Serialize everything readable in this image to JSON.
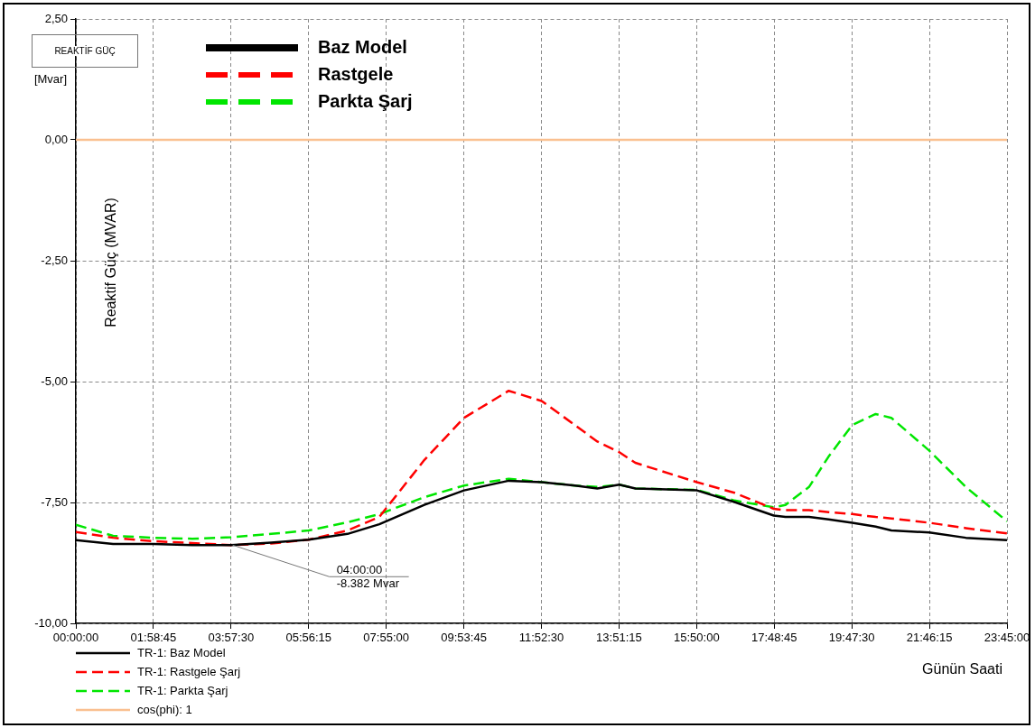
{
  "chart_data": {
    "type": "line",
    "title": "REAKTİF GÜÇ",
    "ylabel": "Reaktif Güç (MVAR)",
    "xlabel": "Günün Saati",
    "annotations": [
      "[Mvar]",
      "Baz Model",
      "Rastgele",
      "Parkta Şarj",
      {
        "text": "04:00:00\n-8.382 Mvar",
        "x": 4,
        "y": -8.382
      }
    ],
    "x": [
      0,
      0.95,
      1.98,
      2.97,
      3.96,
      4.98,
      5.94,
      6.93,
      7.74,
      8.89,
      9.9,
      11.04,
      11.88,
      12.73,
      13.3,
      13.86,
      14.27,
      15.84,
      16.8,
      17.8,
      18.1,
      18.7,
      19.2,
      19.8,
      20.4,
      20.8,
      21.77,
      22.7,
      23.75
    ],
    "series": [
      {
        "name": "TR-1: Baz Model",
        "color": "#000000",
        "line_style": "solid",
        "values": [
          -8.28,
          -8.36,
          -8.36,
          -8.38,
          -8.38,
          -8.33,
          -8.27,
          -8.15,
          -7.95,
          -7.55,
          -7.25,
          -7.05,
          -7.08,
          -7.15,
          -7.21,
          -7.13,
          -7.21,
          -7.25,
          -7.49,
          -7.77,
          -7.8,
          -7.8,
          -7.85,
          -7.92,
          -8.0,
          -8.08,
          -8.12,
          -8.23,
          -8.28
        ]
      },
      {
        "name": "TR-1: Rastgele Şarj",
        "color": "#ff0000",
        "line_style": "dashed",
        "values": [
          -8.11,
          -8.23,
          -8.3,
          -8.34,
          -8.38,
          -8.35,
          -8.27,
          -8.08,
          -7.8,
          -6.62,
          -5.75,
          -5.19,
          -5.4,
          -5.9,
          -6.24,
          -6.46,
          -6.68,
          -7.08,
          -7.3,
          -7.63,
          -7.66,
          -7.66,
          -7.7,
          -7.74,
          -7.8,
          -7.83,
          -7.92,
          -8.03,
          -8.14
        ]
      },
      {
        "name": "TR-1: Parkta Şarj",
        "color": "#00e600",
        "line_style": "dashed",
        "values": [
          -7.96,
          -8.19,
          -8.23,
          -8.25,
          -8.22,
          -8.15,
          -8.08,
          -7.91,
          -7.74,
          -7.39,
          -7.15,
          -7.01,
          -7.08,
          -7.15,
          -7.18,
          -7.13,
          -7.21,
          -7.24,
          -7.46,
          -7.6,
          -7.55,
          -7.18,
          -6.55,
          -5.9,
          -5.67,
          -5.75,
          -6.43,
          -7.18,
          -7.89
        ]
      },
      {
        "name": "cos(phi): 1",
        "color": "#fac090",
        "line_style": "solid",
        "x": [
          0,
          23.75
        ],
        "values": [
          0,
          0
        ]
      }
    ],
    "xlim": [
      0,
      23.75
    ],
    "xticks": [
      {
        "value": 0,
        "label": "00:00:00"
      },
      {
        "value": 1.979167,
        "label": "01:58:45"
      },
      {
        "value": 3.958333,
        "label": "03:57:30"
      },
      {
        "value": 5.9375,
        "label": "05:56:15"
      },
      {
        "value": 7.916667,
        "label": "07:55:00"
      },
      {
        "value": 9.895833,
        "label": "09:53:45"
      },
      {
        "value": 11.875,
        "label": "11:52:30"
      },
      {
        "value": 13.854167,
        "label": "13:51:15"
      },
      {
        "value": 15.833333,
        "label": "15:50:00"
      },
      {
        "value": 17.8125,
        "label": "17:48:45"
      },
      {
        "value": 19.791667,
        "label": "19:47:30"
      },
      {
        "value": 21.770833,
        "label": "21:46:15"
      },
      {
        "value": 23.75,
        "label": "23:45:00"
      }
    ],
    "ylim": [
      -10,
      2.5
    ],
    "yticks": [
      {
        "value": 2.5,
        "label": "2,50"
      },
      {
        "value": 0,
        "label": "0,00"
      },
      {
        "value": -2.5,
        "label": "-2,50"
      },
      {
        "value": -5,
        "label": "-5,00"
      },
      {
        "value": -7.5,
        "label": "-7,50"
      },
      {
        "value": -10,
        "label": "-10,00"
      }
    ],
    "grid": true,
    "legend": "bottom",
    "marker": "none"
  }
}
